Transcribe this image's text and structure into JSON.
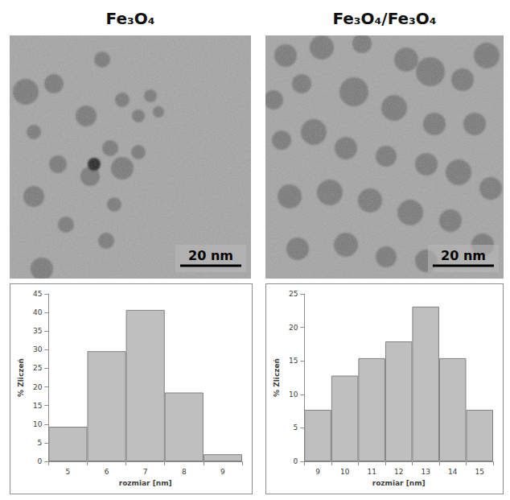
{
  "titles": [
    "Fe₃O₄",
    "Fe₃O₄/Fe₃O₄"
  ],
  "micrographs": [
    {
      "scale_bar": "20 nm"
    },
    {
      "scale_bar": "20 nm"
    }
  ],
  "chart_data": [
    {
      "type": "bar",
      "categories": [
        5,
        6,
        7,
        8,
        9
      ],
      "values": [
        9.3,
        29.6,
        40.7,
        18.5,
        1.9
      ],
      "color": "#bfbfbf",
      "xlabel": "rozmiar [nm]",
      "ylabel": "% Zliczeń",
      "ylim": [
        0,
        45
      ],
      "yticks": [
        0,
        5,
        10,
        15,
        20,
        25,
        30,
        35,
        40,
        45
      ],
      "grid": false
    },
    {
      "type": "bar",
      "categories": [
        9,
        10,
        11,
        12,
        13,
        14,
        15
      ],
      "values": [
        7.7,
        12.8,
        15.4,
        17.9,
        23.1,
        15.4,
        7.7
      ],
      "color": "#bfbfbf",
      "xlabel": "rozmiar [nm]",
      "ylabel": "% Zliczeń",
      "ylim": [
        0,
        25
      ],
      "yticks": [
        0,
        5,
        10,
        15,
        20,
        25
      ],
      "grid": false
    }
  ]
}
